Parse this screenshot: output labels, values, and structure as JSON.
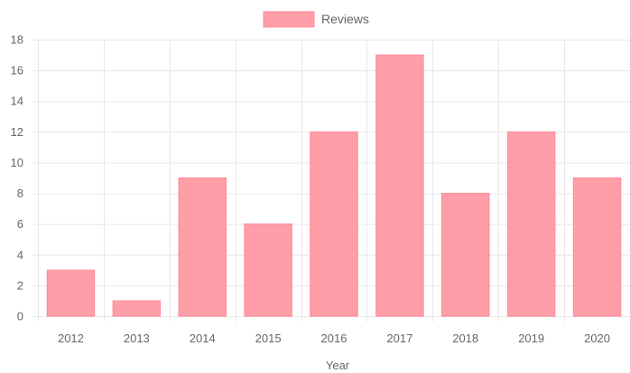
{
  "chart_data": {
    "type": "bar",
    "categories": [
      "2012",
      "2013",
      "2014",
      "2015",
      "2016",
      "2017",
      "2018",
      "2019",
      "2020"
    ],
    "series": [
      {
        "name": "Reviews",
        "values": [
          3,
          1,
          9,
          6,
          12,
          17,
          8,
          12,
          9
        ]
      }
    ],
    "xlabel": "Year",
    "ylabel": "",
    "ylim": [
      0,
      18
    ],
    "yticks": [
      0,
      2,
      4,
      6,
      8,
      10,
      12,
      14,
      16,
      18
    ],
    "grid": true,
    "legend_position": "top",
    "colors": {
      "bar_fill": "#ff9ea8",
      "bar_stroke": "#ff8a97",
      "grid": "#e8e8e8",
      "text": "#666666"
    }
  }
}
